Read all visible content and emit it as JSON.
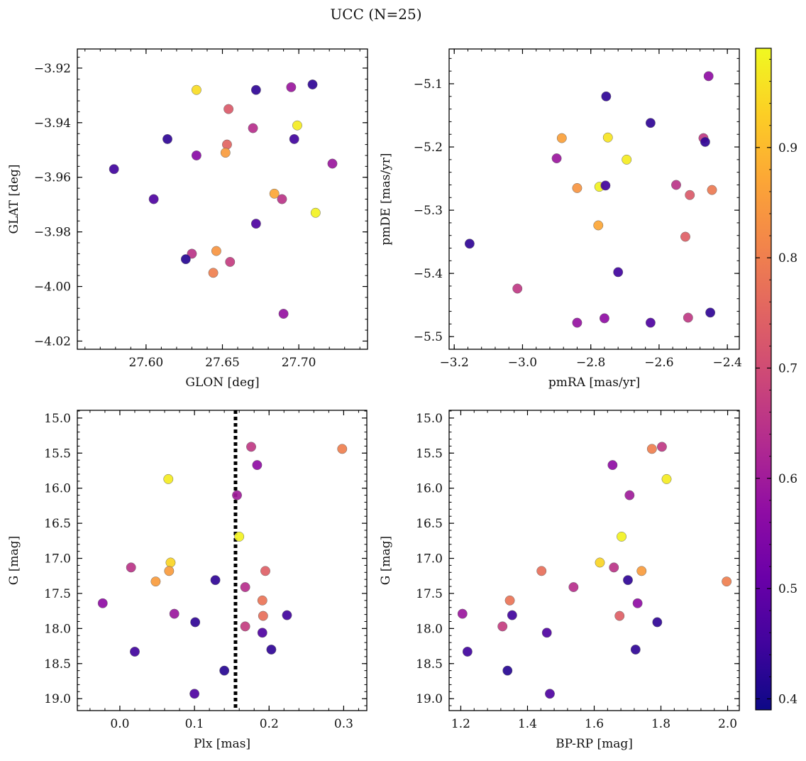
{
  "figure_title": "UCC (N=25)",
  "colormap": {
    "name": "plasma",
    "range": [
      0.39,
      0.99
    ],
    "ticks": [
      0.4,
      0.5,
      0.6,
      0.7,
      0.8,
      0.9
    ],
    "tick_labels": [
      "0.4",
      "0.5",
      "0.6",
      "0.7",
      "0.8",
      "0.9"
    ],
    "stops": [
      "#0d0887",
      "#41049d",
      "#6a00a8",
      "#8f0da4",
      "#b12a90",
      "#cc4778",
      "#e16462",
      "#f2844b",
      "#fca636",
      "#fcce25",
      "#f0f921"
    ]
  },
  "chart_data": [
    {
      "type": "scatter",
      "id": "glon-glat",
      "xlabel": "GLON [deg]",
      "ylabel": "GLAT [deg]",
      "xlim": [
        27.555,
        27.745
      ],
      "ylim": [
        -4.023,
        -3.913
      ],
      "y_inverted": false,
      "xticks": [
        27.6,
        27.65,
        27.7
      ],
      "xtick_labels": [
        "27.60",
        "27.65",
        "27.70"
      ],
      "yticks": [
        -3.92,
        -3.94,
        -3.96,
        -3.98,
        -4.0,
        -4.02
      ],
      "ytick_labels": [
        "−3.92",
        "−3.94",
        "−3.96",
        "−3.98",
        "−4.00",
        "−4.02"
      ],
      "x": [
        27.709,
        27.695,
        27.672,
        27.633,
        27.654,
        27.67,
        27.699,
        27.614,
        27.697,
        27.653,
        27.633,
        27.652,
        27.722,
        27.579,
        27.605,
        27.684,
        27.689,
        27.711,
        27.672,
        27.63,
        27.646,
        27.626,
        27.655,
        27.644,
        27.69
      ],
      "y": [
        -3.926,
        -3.927,
        -3.928,
        -3.928,
        -3.935,
        -3.942,
        -3.941,
        -3.946,
        -3.946,
        -3.948,
        -3.952,
        -3.951,
        -3.955,
        -3.957,
        -3.968,
        -3.966,
        -3.968,
        -3.973,
        -3.977,
        -3.988,
        -3.987,
        -3.99,
        -3.991,
        -3.995,
        -4.01
      ],
      "c": [
        0.43,
        0.59,
        0.43,
        0.95,
        0.73,
        0.64,
        0.97,
        0.43,
        0.45,
        0.75,
        0.56,
        0.85,
        0.59,
        0.45,
        0.47,
        0.87,
        0.65,
        0.98,
        0.47,
        0.65,
        0.84,
        0.42,
        0.67,
        0.8,
        0.58
      ]
    },
    {
      "type": "scatter",
      "id": "pmra-pmde",
      "xlabel": "pmRA [mas/yr]",
      "ylabel": "pmDE [mas/yr]",
      "xlim": [
        -3.215,
        -2.365
      ],
      "ylim": [
        -5.52,
        -5.045
      ],
      "y_inverted": false,
      "xticks": [
        -3.2,
        -3.0,
        -2.8,
        -2.6,
        -2.4
      ],
      "xtick_labels": [
        "−3.2",
        "−3.0",
        "−2.8",
        "−2.6",
        "−2.4"
      ],
      "yticks": [
        -5.1,
        -5.2,
        -5.3,
        -5.4,
        -5.5
      ],
      "ytick_labels": [
        "−5.1",
        "−5.2",
        "−5.3",
        "−5.4",
        "−5.5"
      ],
      "x": [
        -2.455,
        -2.755,
        -2.625,
        -2.885,
        -2.75,
        -2.47,
        -2.465,
        -2.9,
        -2.695,
        -2.84,
        -2.775,
        -2.757,
        -2.55,
        -2.51,
        -2.445,
        -2.778,
        -2.523,
        -3.155,
        -2.72,
        -3.015,
        -2.84,
        -2.76,
        -2.625,
        -2.515,
        -2.45
      ],
      "y": [
        -5.088,
        -5.12,
        -5.162,
        -5.186,
        -5.185,
        -5.186,
        -5.192,
        -5.218,
        -5.22,
        -5.265,
        -5.263,
        -5.261,
        -5.26,
        -5.276,
        -5.268,
        -5.324,
        -5.342,
        -5.353,
        -5.398,
        -5.424,
        -5.478,
        -5.471,
        -5.478,
        -5.47,
        -5.462
      ],
      "c": [
        0.57,
        0.43,
        0.43,
        0.86,
        0.96,
        0.66,
        0.43,
        0.59,
        0.97,
        0.84,
        0.98,
        0.45,
        0.65,
        0.73,
        0.79,
        0.87,
        0.74,
        0.43,
        0.45,
        0.66,
        0.58,
        0.57,
        0.47,
        0.66,
        0.43
      ]
    },
    {
      "type": "scatter",
      "id": "plx-g",
      "xlabel": "Plx [mas]",
      "ylabel": "G [mag]",
      "xlim": [
        -0.057,
        0.331
      ],
      "ylim": [
        19.17,
        14.89
      ],
      "y_inverted": true,
      "vline": 0.155,
      "xticks": [
        0.0,
        0.1,
        0.2,
        0.3
      ],
      "xtick_labels": [
        "0.0",
        "0.1",
        "0.2",
        "0.3"
      ],
      "yticks": [
        15.0,
        15.5,
        16.0,
        16.5,
        17.0,
        17.5,
        18.0,
        18.5,
        19.0
      ],
      "ytick_labels": [
        "15.0",
        "15.5",
        "16.0",
        "16.5",
        "17.0",
        "17.5",
        "18.0",
        "18.5",
        "19.0"
      ],
      "x": [
        0.176,
        0.298,
        0.184,
        0.065,
        0.157,
        0.16,
        0.068,
        0.015,
        0.066,
        0.195,
        0.048,
        0.128,
        0.168,
        0.191,
        -0.023,
        0.192,
        0.073,
        0.224,
        0.101,
        0.168,
        0.191,
        0.203,
        0.02,
        0.14,
        0.1
      ],
      "y": [
        15.41,
        15.44,
        15.67,
        15.87,
        16.1,
        16.69,
        17.06,
        17.13,
        17.18,
        17.18,
        17.33,
        17.31,
        17.41,
        17.6,
        17.64,
        17.82,
        17.79,
        17.81,
        17.91,
        17.97,
        18.06,
        18.3,
        18.33,
        18.6,
        18.93
      ],
      "c": [
        0.66,
        0.8,
        0.57,
        0.97,
        0.6,
        0.98,
        0.94,
        0.65,
        0.85,
        0.74,
        0.85,
        0.43,
        0.64,
        0.78,
        0.57,
        0.77,
        0.59,
        0.45,
        0.43,
        0.67,
        0.47,
        0.43,
        0.45,
        0.42,
        0.47
      ]
    },
    {
      "type": "scatter",
      "id": "bprp-g",
      "xlabel": "BP-RP [mag]",
      "ylabel": "G [mag]",
      "xlim": [
        1.165,
        2.035
      ],
      "ylim": [
        19.17,
        14.89
      ],
      "y_inverted": true,
      "xticks": [
        1.2,
        1.4,
        1.6,
        1.8,
        2.0
      ],
      "xtick_labels": [
        "1.2",
        "1.4",
        "1.6",
        "1.8",
        "2.0"
      ],
      "yticks": [
        15.0,
        15.5,
        16.0,
        16.5,
        17.0,
        17.5,
        18.0,
        18.5,
        19.0
      ],
      "ytick_labels": [
        "15.0",
        "15.5",
        "16.0",
        "16.5",
        "17.0",
        "17.5",
        "18.0",
        "18.5",
        "19.0"
      ],
      "x": [
        1.803,
        1.773,
        1.655,
        1.817,
        1.706,
        1.682,
        1.617,
        1.659,
        1.442,
        1.742,
        1.997,
        1.701,
        1.538,
        1.347,
        1.73,
        1.676,
        1.205,
        1.354,
        1.789,
        1.325,
        1.458,
        1.724,
        1.22,
        1.34,
        1.467
      ],
      "y": [
        15.41,
        15.44,
        15.67,
        15.87,
        16.1,
        16.69,
        17.06,
        17.13,
        17.18,
        17.18,
        17.33,
        17.31,
        17.41,
        17.6,
        17.64,
        17.82,
        17.79,
        17.81,
        17.91,
        17.97,
        18.06,
        18.3,
        18.33,
        18.6,
        18.93
      ],
      "c": [
        0.66,
        0.8,
        0.57,
        0.97,
        0.6,
        0.98,
        0.94,
        0.65,
        0.77,
        0.85,
        0.8,
        0.43,
        0.64,
        0.78,
        0.57,
        0.74,
        0.59,
        0.45,
        0.43,
        0.67,
        0.47,
        0.43,
        0.45,
        0.42,
        0.47
      ]
    }
  ]
}
